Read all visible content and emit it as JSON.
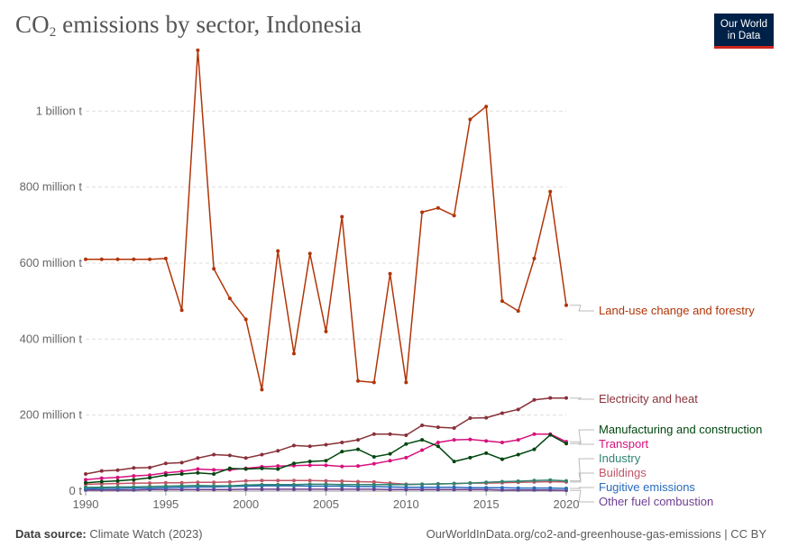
{
  "header": {
    "title_main": "CO",
    "title_sub": "2",
    "title_rest": " emissions by sector, Indonesia",
    "logo_line1": "Our World",
    "logo_line2": "in Data"
  },
  "footer": {
    "source_label": "Data source:",
    "source_value": " Climate Watch (2023)",
    "url": "OurWorldInData.org/co2-and-greenhouse-gas-emissions | CC BY"
  },
  "chart_data": {
    "type": "line",
    "title": "CO₂ emissions by sector, Indonesia",
    "xlim": [
      1990,
      2020
    ],
    "ylim": [
      0,
      1150000000
    ],
    "grid": "horizontal dashed",
    "legend_placement": "right, line-end labels",
    "x_ticks": [
      1990,
      1995,
      2000,
      2005,
      2010,
      2015,
      2020
    ],
    "x_tick_labels": [
      "1990",
      "1995",
      "2000",
      "2005",
      "2010",
      "2015",
      "2020"
    ],
    "y_ticks": [
      0,
      200000000,
      400000000,
      600000000,
      800000000,
      1000000000
    ],
    "y_tick_labels": [
      "0 t",
      "200 million t",
      "400 million t",
      "600 million t",
      "800 million t",
      "1 billion t"
    ],
    "x": [
      1990,
      1991,
      1992,
      1993,
      1994,
      1995,
      1996,
      1997,
      1998,
      1999,
      2000,
      2001,
      2002,
      2003,
      2004,
      2005,
      2006,
      2007,
      2008,
      2009,
      2010,
      2011,
      2012,
      2013,
      2014,
      2015,
      2016,
      2017,
      2018,
      2019,
      2020
    ],
    "series": [
      {
        "name": "Land-use change and forestry",
        "color": "#b13507",
        "values": [
          610000000,
          610000000,
          610000000,
          610000000,
          610000000,
          612000000,
          476000000,
          1160000000,
          585000000,
          507000000,
          452000000,
          267000000,
          632000000,
          362000000,
          625000000,
          420000000,
          722000000,
          290000000,
          286000000,
          572000000,
          286000000,
          734000000,
          745000000,
          725000000,
          978000000,
          1012000000,
          500000000,
          474000000,
          612000000,
          788000000,
          489000000
        ]
      },
      {
        "name": "Electricity and heat",
        "color": "#883039",
        "values": [
          45000000,
          53000000,
          55000000,
          61000000,
          62000000,
          73000000,
          75000000,
          87000000,
          96000000,
          94000000,
          87000000,
          96000000,
          106000000,
          120000000,
          118000000,
          122000000,
          128000000,
          135000000,
          150000000,
          150000000,
          147000000,
          173000000,
          168000000,
          166000000,
          192000000,
          193000000,
          205000000,
          215000000,
          240000000,
          245000000,
          245000000
        ]
      },
      {
        "name": "Manufacturing and construction",
        "color": "#00460f",
        "values": [
          22000000,
          25000000,
          27000000,
          30000000,
          35000000,
          42000000,
          45000000,
          48000000,
          45000000,
          60000000,
          58000000,
          60000000,
          58000000,
          73000000,
          78000000,
          80000000,
          104000000,
          110000000,
          90000000,
          98000000,
          124000000,
          135000000,
          118000000,
          78000000,
          88000000,
          100000000,
          84000000,
          96000000,
          110000000,
          148000000,
          125000000
        ]
      },
      {
        "name": "Transport",
        "color": "#d7117d",
        "values": [
          30000000,
          34000000,
          36000000,
          40000000,
          42000000,
          48000000,
          52000000,
          58000000,
          56000000,
          56000000,
          60000000,
          64000000,
          66000000,
          67000000,
          68000000,
          68000000,
          65000000,
          66000000,
          72000000,
          80000000,
          88000000,
          108000000,
          128000000,
          135000000,
          136000000,
          132000000,
          128000000,
          135000000,
          150000000,
          150000000,
          130000000
        ]
      },
      {
        "name": "Industry",
        "color": "#2f8470",
        "values": [
          10000000,
          10000000,
          11000000,
          11000000,
          12000000,
          13000000,
          14000000,
          15000000,
          14000000,
          14000000,
          16000000,
          17000000,
          17000000,
          17000000,
          18000000,
          18000000,
          17000000,
          17000000,
          17000000,
          17000000,
          17000000,
          18000000,
          19000000,
          20000000,
          21000000,
          23000000,
          25000000,
          26000000,
          28000000,
          29000000,
          27000000
        ]
      },
      {
        "name": "Buildings",
        "color": "#c05566",
        "values": [
          18000000,
          19000000,
          20000000,
          21000000,
          21000000,
          22000000,
          22000000,
          23000000,
          23000000,
          24000000,
          27000000,
          28000000,
          28000000,
          28000000,
          28000000,
          27000000,
          26000000,
          25000000,
          24000000,
          21000000,
          18000000,
          18000000,
          19000000,
          20000000,
          21000000,
          21000000,
          22000000,
          23000000,
          24000000,
          25000000,
          24000000
        ]
      },
      {
        "name": "Fugitive emissions",
        "color": "#286bbb",
        "values": [
          6000000,
          7000000,
          7000000,
          8000000,
          8000000,
          9000000,
          10000000,
          11000000,
          11000000,
          12000000,
          13000000,
          14000000,
          14000000,
          14000000,
          13000000,
          13000000,
          13000000,
          12000000,
          12000000,
          11000000,
          10000000,
          10000000,
          10000000,
          10000000,
          9000000,
          9000000,
          9000000,
          8000000,
          8000000,
          8000000,
          7000000
        ]
      },
      {
        "name": "Other fuel combustion",
        "color": "#6d3e91",
        "values": [
          3000000,
          3000000,
          3000000,
          3000000,
          4000000,
          4000000,
          4000000,
          4000000,
          4000000,
          4000000,
          5000000,
          5000000,
          5000000,
          5000000,
          5000000,
          5000000,
          5000000,
          5000000,
          5000000,
          4000000,
          4000000,
          4000000,
          4000000,
          4000000,
          4000000,
          4000000,
          3000000,
          3000000,
          3000000,
          3000000,
          2000000
        ]
      }
    ]
  }
}
